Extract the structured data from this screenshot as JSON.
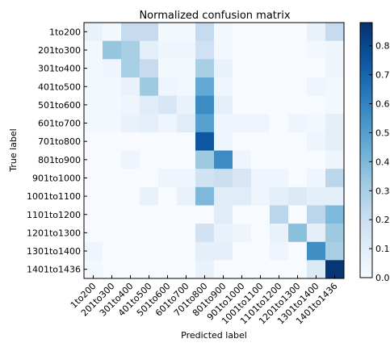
{
  "chart_data": {
    "type": "heatmap",
    "title": "Normalized confusion matrix",
    "xlabel": "Predicted label",
    "ylabel": "True label",
    "row_labels": [
      "1to200",
      "201to300",
      "301to400",
      "401to500",
      "501to600",
      "601to700",
      "701to800",
      "801to900",
      "901to1000",
      "1001to1100",
      "1101to1200",
      "1201to1300",
      "1301to1400",
      "1401to1436"
    ],
    "col_labels": [
      "1to200",
      "201to300",
      "301to400",
      "401to500",
      "501to600",
      "601to700",
      "701to800",
      "801to900",
      "901to1000",
      "1001to1100",
      "1101to1200",
      "1201to1300",
      "1301to1400",
      "1401to1436"
    ],
    "values": [
      [
        0.06,
        0.02,
        0.22,
        0.22,
        0.02,
        0.02,
        0.22,
        0.02,
        0.0,
        0.0,
        0.0,
        0.0,
        0.06,
        0.22
      ],
      [
        0.02,
        0.35,
        0.3,
        0.08,
        0.04,
        0.04,
        0.18,
        0.02,
        0.0,
        0.0,
        0.0,
        0.0,
        0.02,
        0.04
      ],
      [
        0.02,
        0.04,
        0.3,
        0.22,
        0.02,
        0.02,
        0.3,
        0.06,
        0.0,
        0.0,
        0.0,
        0.0,
        0.0,
        0.04
      ],
      [
        0.02,
        0.02,
        0.06,
        0.33,
        0.04,
        0.02,
        0.46,
        0.04,
        0.0,
        0.0,
        0.0,
        0.0,
        0.04,
        0.02
      ],
      [
        0.02,
        0.02,
        0.04,
        0.1,
        0.14,
        0.06,
        0.57,
        0.08,
        0.0,
        0.0,
        0.0,
        0.0,
        0.0,
        0.02
      ],
      [
        0.02,
        0.02,
        0.06,
        0.08,
        0.04,
        0.1,
        0.49,
        0.04,
        0.04,
        0.04,
        0.0,
        0.04,
        0.02,
        0.08
      ],
      [
        0.0,
        0.0,
        0.0,
        0.0,
        0.0,
        0.0,
        0.75,
        0.04,
        0.0,
        0.0,
        0.0,
        0.0,
        0.04,
        0.08
      ],
      [
        0.0,
        0.0,
        0.04,
        0.0,
        0.0,
        0.0,
        0.33,
        0.57,
        0.04,
        0.0,
        0.0,
        0.0,
        0.0,
        0.04
      ],
      [
        0.0,
        0.0,
        0.0,
        0.0,
        0.04,
        0.04,
        0.17,
        0.2,
        0.14,
        0.04,
        0.04,
        0.0,
        0.04,
        0.25
      ],
      [
        0.0,
        0.0,
        0.0,
        0.06,
        0.0,
        0.06,
        0.4,
        0.1,
        0.1,
        0.04,
        0.08,
        0.12,
        0.08,
        0.08
      ],
      [
        0.0,
        0.0,
        0.0,
        0.0,
        0.0,
        0.0,
        0.0,
        0.1,
        0.0,
        0.0,
        0.25,
        0.0,
        0.25,
        0.4
      ],
      [
        0.0,
        0.0,
        0.0,
        0.0,
        0.0,
        0.0,
        0.17,
        0.06,
        0.04,
        0.0,
        0.06,
        0.37,
        0.08,
        0.33
      ],
      [
        0.04,
        0.0,
        0.0,
        0.0,
        0.0,
        0.0,
        0.08,
        0.08,
        0.0,
        0.0,
        0.04,
        0.0,
        0.56,
        0.3
      ],
      [
        0.02,
        0.0,
        0.0,
        0.0,
        0.0,
        0.0,
        0.06,
        0.0,
        0.0,
        0.0,
        0.0,
        0.0,
        0.12,
        0.86
      ]
    ],
    "colorbar": {
      "min": 0.0,
      "max": 0.88,
      "ticks": [
        0.0,
        0.1,
        0.2,
        0.3,
        0.4,
        0.5,
        0.6,
        0.7,
        0.8
      ],
      "tick_labels": [
        "0.0",
        "0.1",
        "0.2",
        "0.3",
        "0.4",
        "0.5",
        "0.6",
        "0.7",
        "0.8"
      ],
      "colormap": "Blues"
    },
    "grid": false
  }
}
